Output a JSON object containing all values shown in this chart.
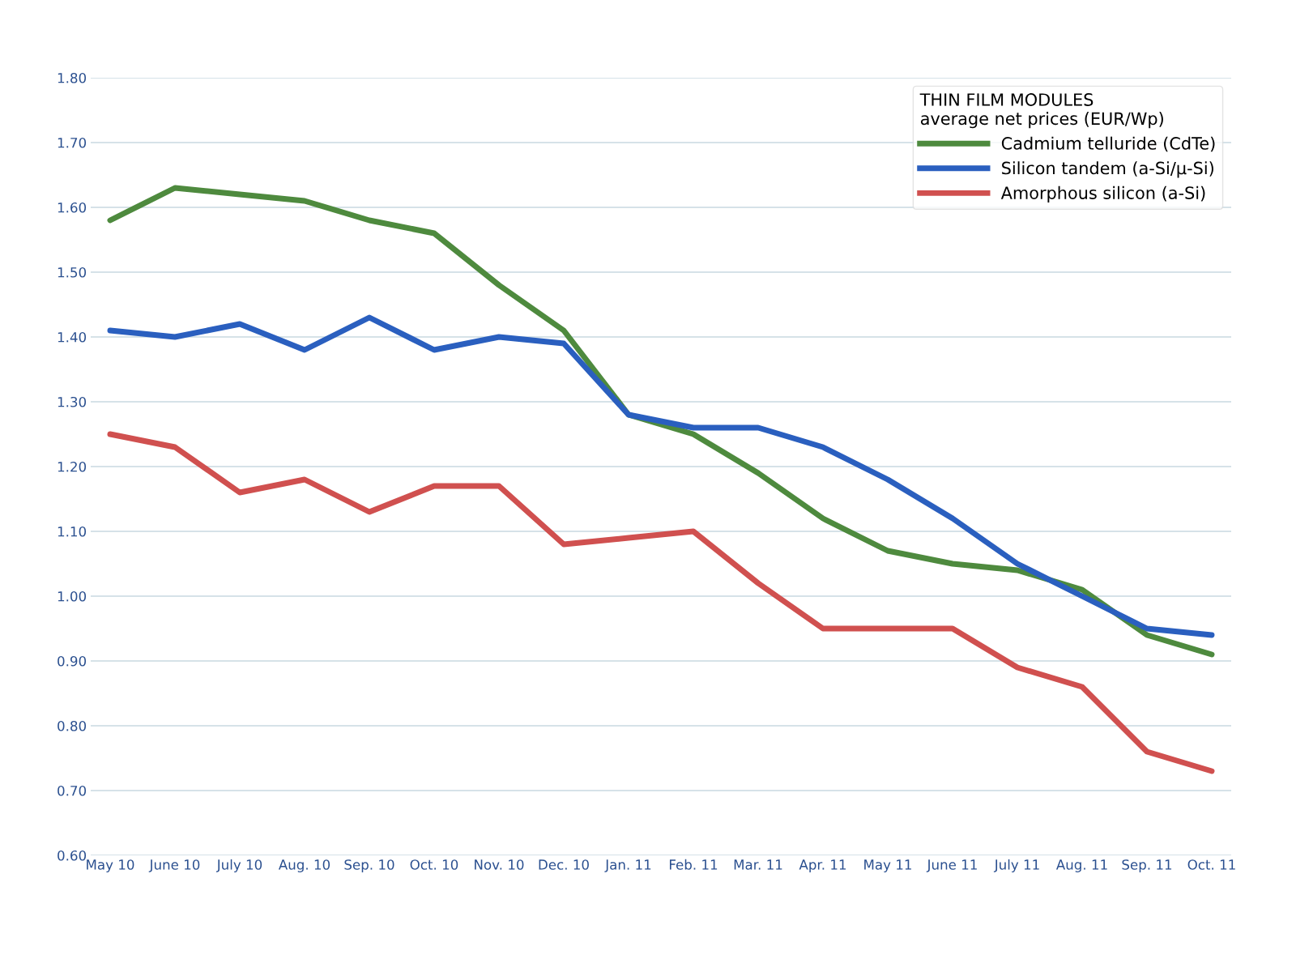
{
  "chart_data": {
    "type": "line",
    "legend_title": "THIN FILM MODULES",
    "subtitle": "average net prices (EUR/Wp)",
    "categories": [
      "May 10",
      "June 10",
      "July 10",
      "Aug. 10",
      "Sep. 10",
      "Oct. 10",
      "Nov. 10",
      "Dec. 10",
      "Jan. 11",
      "Feb. 11",
      "Mar. 11",
      "Apr. 11",
      "May 11",
      "June 11",
      "July 11",
      "Aug. 11",
      "Sep. 11",
      "Oct. 11"
    ],
    "series": [
      {
        "name": "Cadmium telluride (CdTe)",
        "color": "#4e8a3e",
        "values": [
          1.58,
          1.63,
          1.62,
          1.61,
          1.58,
          1.56,
          1.48,
          1.41,
          1.28,
          1.25,
          1.19,
          1.12,
          1.07,
          1.05,
          1.04,
          1.01,
          0.94,
          0.91
        ]
      },
      {
        "name": "Silicon tandem (a-Si/µ-Si)",
        "color": "#2a5fbf",
        "values": [
          1.41,
          1.4,
          1.42,
          1.38,
          1.43,
          1.38,
          1.4,
          1.39,
          1.28,
          1.26,
          1.26,
          1.23,
          1.18,
          1.12,
          1.05,
          1.0,
          0.95,
          0.94
        ]
      },
      {
        "name": "Amorphous silicon (a-Si)",
        "color": "#d0504f",
        "values": [
          1.25,
          1.23,
          1.16,
          1.18,
          1.13,
          1.17,
          1.17,
          1.08,
          1.09,
          1.1,
          1.02,
          0.95,
          0.95,
          0.95,
          0.89,
          0.86,
          0.76,
          0.73
        ]
      }
    ],
    "ylim": [
      0.6,
      1.8
    ],
    "yticks": [
      {
        "value": 0.6,
        "label": "0.60"
      },
      {
        "value": 0.7,
        "label": "0.70"
      },
      {
        "value": 0.8,
        "label": "0.80"
      },
      {
        "value": 0.9,
        "label": "0.90"
      },
      {
        "value": 1.0,
        "label": "1.00"
      },
      {
        "value": 1.1,
        "label": "1.10"
      },
      {
        "value": 1.2,
        "label": "1.20"
      },
      {
        "value": 1.3,
        "label": "1.30"
      },
      {
        "value": 1.4,
        "label": "1.40"
      },
      {
        "value": 1.5,
        "label": "1.50"
      },
      {
        "value": 1.6,
        "label": "1.60"
      },
      {
        "value": 1.7,
        "label": "1.70"
      },
      {
        "value": 1.8,
        "label": "1.80"
      }
    ],
    "grid": "y",
    "legend": "top right",
    "marker": "none",
    "line_style": "solid"
  }
}
